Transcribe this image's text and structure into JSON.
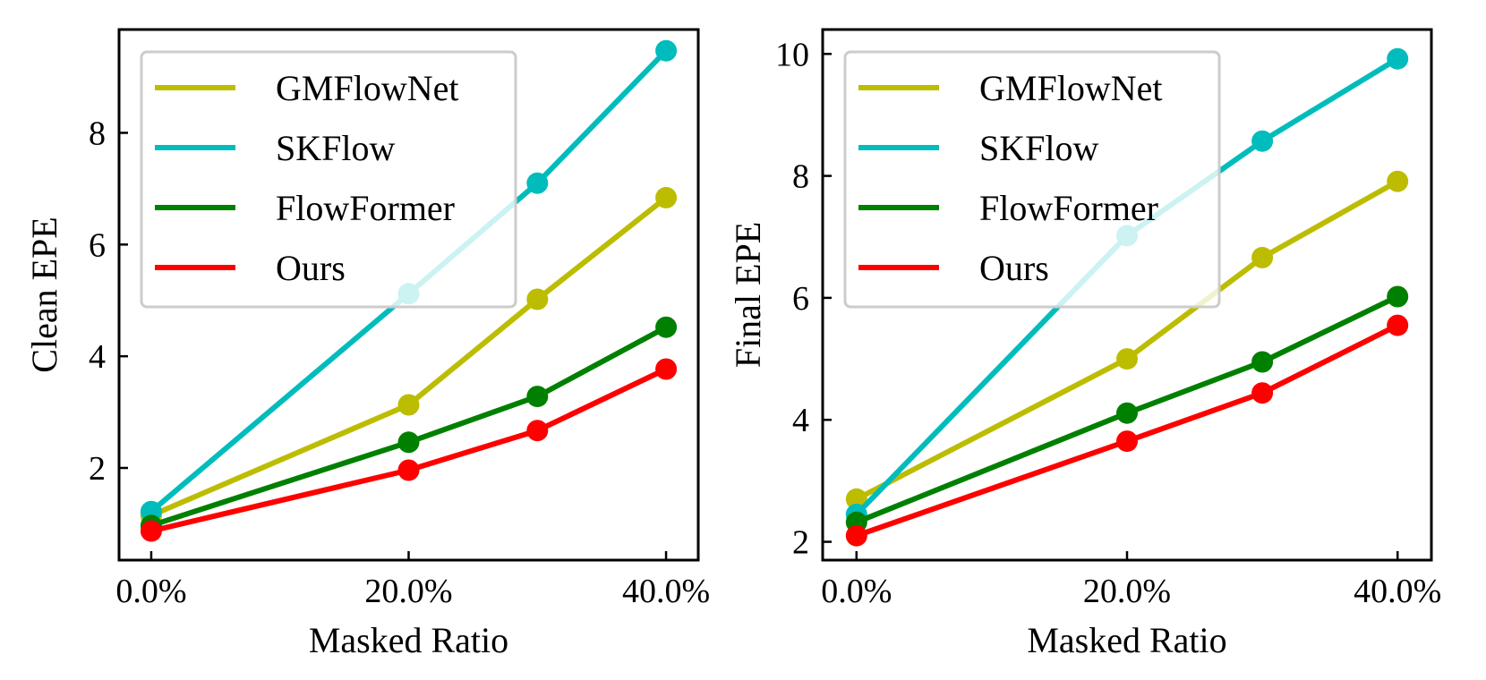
{
  "chart_data": [
    {
      "type": "line",
      "title": "",
      "xlabel": "Masked Ratio",
      "ylabel": "Clean EPE",
      "x": [
        0,
        20,
        30,
        40
      ],
      "xticks": [
        0,
        20,
        40
      ],
      "xtick_labels": [
        "0.0%",
        "20.0%",
        "40.0%"
      ],
      "xlim": [
        -2.5,
        42.5
      ],
      "yticks": [
        2,
        4,
        6,
        8
      ],
      "yticklabels": [
        "2",
        "4",
        "6",
        "8"
      ],
      "ylim": [
        0.35,
        9.85
      ],
      "grid": false,
      "legend_position": "top-left",
      "series": [
        {
          "name": "GMFlowNet",
          "color": "#bcbd00",
          "values": [
            1.15,
            3.13,
            5.02,
            6.84
          ]
        },
        {
          "name": "SKFlow",
          "color": "#00bcbc",
          "values": [
            1.22,
            5.12,
            7.1,
            9.47
          ]
        },
        {
          "name": "FlowFormer",
          "color": "#008000",
          "values": [
            0.97,
            2.46,
            3.28,
            4.52
          ]
        },
        {
          "name": "Ours",
          "color": "#ff0000",
          "values": [
            0.87,
            1.96,
            2.67,
            3.77
          ]
        }
      ]
    },
    {
      "type": "line",
      "title": "",
      "xlabel": "Masked Ratio",
      "ylabel": "Final EPE",
      "x": [
        0,
        20,
        30,
        40
      ],
      "xticks": [
        0,
        20,
        40
      ],
      "xtick_labels": [
        "0.0%",
        "20.0%",
        "40.0%"
      ],
      "xlim": [
        -2.5,
        42.5
      ],
      "yticks": [
        2,
        4,
        6,
        8,
        10
      ],
      "yticklabels": [
        "2",
        "4",
        "6",
        "8",
        "10"
      ],
      "ylim": [
        1.7,
        10.4
      ],
      "grid": false,
      "legend_position": "top-left",
      "series": [
        {
          "name": "GMFlowNet",
          "color": "#bcbd00",
          "values": [
            2.7,
            5.0,
            6.66,
            7.91
          ]
        },
        {
          "name": "SKFlow",
          "color": "#00bcbc",
          "values": [
            2.45,
            7.02,
            8.57,
            9.92
          ]
        },
        {
          "name": "FlowFormer",
          "color": "#008000",
          "values": [
            2.32,
            4.11,
            4.95,
            6.02
          ]
        },
        {
          "name": "Ours",
          "color": "#ff0000",
          "values": [
            2.1,
            3.65,
            4.44,
            5.55
          ]
        }
      ]
    }
  ]
}
